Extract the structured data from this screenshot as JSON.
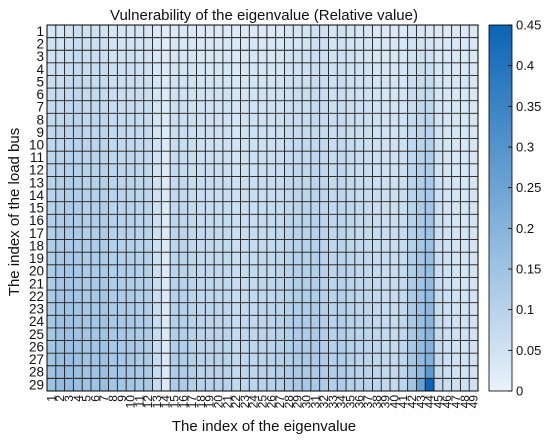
{
  "chart_data": {
    "type": "heatmap",
    "title": "Vulnerability of the eigenvalue (Relative value)",
    "xlabel": "The index of the eigenvalue",
    "ylabel": "The index of the load bus",
    "x": [
      1,
      2,
      3,
      4,
      5,
      6,
      7,
      8,
      9,
      10,
      11,
      12,
      13,
      14,
      15,
      16,
      17,
      18,
      19,
      20,
      21,
      22,
      23,
      24,
      25,
      26,
      27,
      28,
      29,
      30,
      31,
      32,
      33,
      34,
      35,
      36,
      37,
      38,
      39,
      40,
      41,
      42,
      43,
      44,
      45,
      46,
      47,
      48,
      49
    ],
    "y": [
      1,
      2,
      3,
      4,
      5,
      6,
      7,
      8,
      9,
      10,
      11,
      12,
      13,
      14,
      15,
      16,
      17,
      18,
      19,
      20,
      21,
      22,
      23,
      24,
      25,
      26,
      27,
      28,
      29
    ],
    "colorbar": {
      "range": [
        0,
        0.45
      ],
      "ticks": [
        "0",
        "0.05",
        "0.1",
        "0.15",
        "0.2",
        "0.25",
        "0.3",
        "0.35",
        "0.4",
        "0.45"
      ],
      "color_low": "#e9f2fa",
      "color_high": "#0b64b5"
    },
    "notable_values": [
      {
        "x": 44,
        "y": 29,
        "value": 0.45
      },
      {
        "x": 44,
        "y": 28,
        "value": 0.28
      },
      {
        "x": 43,
        "y": 29,
        "value": 0.26
      }
    ],
    "note_columns_profile": {
      "x": [
        1,
        2,
        3,
        4,
        5,
        6,
        7,
        8,
        9,
        10,
        11,
        12,
        13,
        14,
        15,
        16,
        17,
        18,
        19,
        20,
        21,
        22,
        23,
        24,
        25,
        26,
        27,
        28,
        29,
        30,
        31,
        32,
        33,
        34,
        35,
        36,
        37,
        38,
        39,
        40,
        41,
        42,
        43,
        44,
        45,
        46,
        47,
        48,
        49
      ],
      "top": [
        0.04,
        0.04,
        0.05,
        0.06,
        0.05,
        0.05,
        0.05,
        0.04,
        0.04,
        0.04,
        0.04,
        0.04,
        0.03,
        0.02,
        0.03,
        0.03,
        0.03,
        0.03,
        0.03,
        0.03,
        0.03,
        0.02,
        0.03,
        0.03,
        0.03,
        0.03,
        0.03,
        0.04,
        0.04,
        0.04,
        0.05,
        0.05,
        0.04,
        0.05,
        0.04,
        0.04,
        0.04,
        0.03,
        0.03,
        0.03,
        0.03,
        0.04,
        0.04,
        0.03,
        0.03,
        0.03,
        0.03,
        0.03,
        0.03
      ],
      "bottom": [
        0.15,
        0.17,
        0.17,
        0.16,
        0.15,
        0.15,
        0.16,
        0.14,
        0.14,
        0.14,
        0.13,
        0.13,
        0.07,
        0.03,
        0.12,
        0.12,
        0.11,
        0.1,
        0.1,
        0.1,
        0.1,
        0.08,
        0.09,
        0.09,
        0.1,
        0.1,
        0.11,
        0.12,
        0.13,
        0.13,
        0.13,
        0.12,
        0.11,
        0.12,
        0.11,
        0.1,
        0.1,
        0.09,
        0.08,
        0.08,
        0.09,
        0.14,
        0.18,
        0.22,
        0.08,
        0.06,
        0.05,
        0.05,
        0.05
      ]
    }
  }
}
